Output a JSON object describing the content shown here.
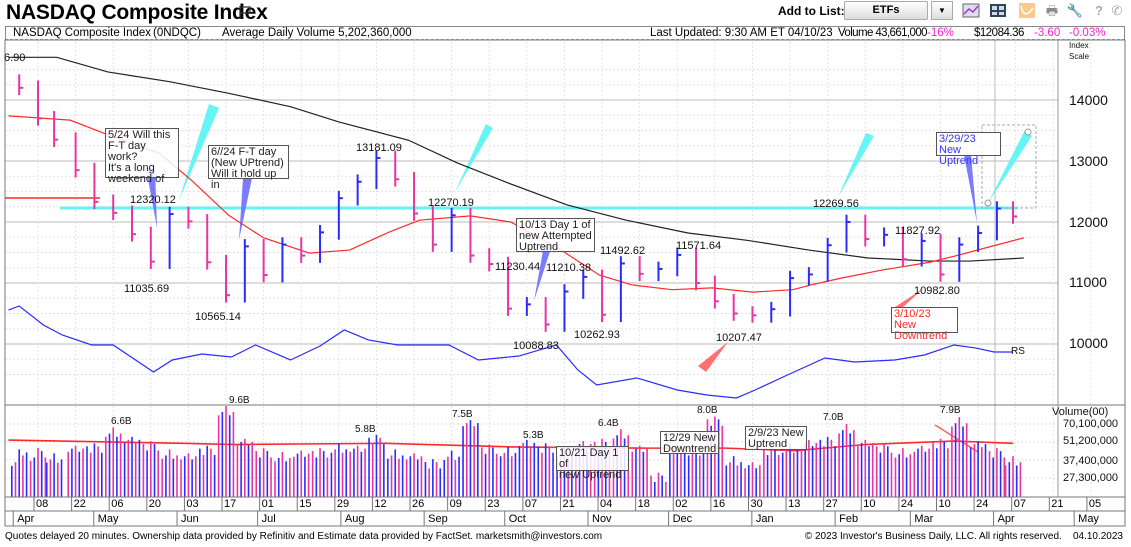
{
  "header": {
    "title": "NASDAQ Composite Index",
    "add_to_list_label": "Add to List:",
    "list_selected": "ETFs",
    "toolbar_icons": [
      "chart-line-icon",
      "layout-grid-icon",
      "overlay-chart-icon",
      "print-icon",
      "wrench-icon",
      "help-icon",
      "phone-icon"
    ]
  },
  "infobar": {
    "name": "NASDAQ Composite Index",
    "symbol": "(0NDQC)",
    "avg_volume": "Average Daily Volume 5,202,360,000",
    "last_updated": "Last Updated: 9:30 AM ET 04/10/23",
    "volume": "Volume 43,661,000",
    "volume_pct": "-16%",
    "price": "$12084.36",
    "change": "-3.60",
    "change_pct": "-0.03%"
  },
  "colors": {
    "up": "#2b2bff",
    "down": "#e8359f",
    "ma50": "#ff2a2a",
    "ma200": "#222222",
    "rs": "#2b2bff",
    "cyan": "#66f4f4",
    "accent_pink": "#ff1fd2"
  },
  "chart_data": {
    "type": "bar",
    "subtype": "ohlc-with-volume",
    "price_axis": {
      "label_top": "Index",
      "label_bottom": "Scale",
      "ticks": [
        "14000",
        "13000",
        "12000",
        "11000",
        "10000"
      ],
      "top_label": "6.90",
      "scale": "linear"
    },
    "volume_axis": {
      "label": "Volume(00)",
      "ticks": [
        "70,100,000",
        "51,200,000",
        "37,400,000",
        "27,300,000"
      ],
      "scale": "log"
    },
    "x_day_ticks": [
      "08",
      "22",
      "06",
      "20",
      "03",
      "17",
      "01",
      "15",
      "29",
      "12",
      "26",
      "09",
      "23",
      "07",
      "21",
      "04",
      "18",
      "02",
      "16",
      "30",
      "13",
      "27",
      "10",
      "24",
      "10",
      "24",
      "07",
      "21",
      "05"
    ],
    "x_month_ticks": [
      "Apr",
      "May",
      "Jun",
      "Jul",
      "Aug",
      "Sep",
      "Oct",
      "Nov",
      "Dec",
      "Jan",
      "Feb",
      "Mar",
      "Apr",
      "May"
    ],
    "weekly": [
      {
        "date": "2022-04-01",
        "close": 14200,
        "volume_b": 4.5
      },
      {
        "date": "2022-04-08",
        "close": 13700,
        "volume_b": 4.6
      },
      {
        "date": "2022-04-14",
        "close": 13350,
        "volume_b": 4.2
      },
      {
        "date": "2022-04-22",
        "close": 12850,
        "volume_b": 4.8
      },
      {
        "date": "2022-04-29",
        "close": 12330,
        "volume_b": 5.0
      },
      {
        "date": "2022-05-06",
        "close": 12150,
        "volume_b": 6.6
      },
      {
        "date": "2022-05-13",
        "close": 11800,
        "volume_b": 5.6
      },
      {
        "date": "2022-05-20",
        "close": 11350,
        "volume_b": 5.2
      },
      {
        "date": "2022-05-27",
        "close": 12130,
        "volume_b": 4.5
      },
      {
        "date": "2022-06-03",
        "close": 12010,
        "volume_b": 4.2
      },
      {
        "date": "2022-06-10",
        "close": 11340,
        "volume_b": 4.8
      },
      {
        "date": "2022-06-17",
        "close": 10800,
        "volume_b": 9.6
      },
      {
        "date": "2022-06-24",
        "close": 11600,
        "volume_b": 5.4
      },
      {
        "date": "2022-07-01",
        "close": 11130,
        "volume_b": 4.6
      },
      {
        "date": "2022-07-08",
        "close": 11630,
        "volume_b": 4.3
      },
      {
        "date": "2022-07-15",
        "close": 11450,
        "volume_b": 4.4
      },
      {
        "date": "2022-07-22",
        "close": 11830,
        "volume_b": 4.6
      },
      {
        "date": "2022-07-29",
        "close": 12390,
        "volume_b": 5.0
      },
      {
        "date": "2022-08-05",
        "close": 12660,
        "volume_b": 4.8
      },
      {
        "date": "2022-08-12",
        "close": 13050,
        "volume_b": 5.8
      },
      {
        "date": "2022-08-19",
        "close": 12700,
        "volume_b": 4.5
      },
      {
        "date": "2022-08-26",
        "close": 12140,
        "volume_b": 4.2
      },
      {
        "date": "2022-09-02",
        "close": 11630,
        "volume_b": 3.8
      },
      {
        "date": "2022-09-09",
        "close": 12110,
        "volume_b": 4.4
      },
      {
        "date": "2022-09-16",
        "close": 11450,
        "volume_b": 7.5
      },
      {
        "date": "2022-09-23",
        "close": 11310,
        "volume_b": 4.9
      },
      {
        "date": "2022-09-30",
        "close": 10580,
        "volume_b": 4.7
      },
      {
        "date": "2022-10-07",
        "close": 10650,
        "volume_b": 5.3
      },
      {
        "date": "2022-10-14",
        "close": 10320,
        "volume_b": 5.0
      },
      {
        "date": "2022-10-21",
        "close": 10860,
        "volume_b": 4.6
      },
      {
        "date": "2022-10-28",
        "close": 11100,
        "volume_b": 5.2
      },
      {
        "date": "2022-11-04",
        "close": 10480,
        "volume_b": 5.4
      },
      {
        "date": "2022-11-11",
        "close": 11320,
        "volume_b": 6.4
      },
      {
        "date": "2022-11-18",
        "close": 11150,
        "volume_b": 4.8
      },
      {
        "date": "2022-11-25",
        "close": 11230,
        "volume_b": 3.0
      },
      {
        "date": "2022-12-02",
        "close": 11460,
        "volume_b": 4.9
      },
      {
        "date": "2022-12-09",
        "close": 11000,
        "volume_b": 4.5
      },
      {
        "date": "2022-12-16",
        "close": 10700,
        "volume_b": 8.0
      },
      {
        "date": "2022-12-23",
        "close": 10500,
        "volume_b": 4.0
      },
      {
        "date": "2022-12-30",
        "close": 10470,
        "volume_b": 3.6
      },
      {
        "date": "2023-01-06",
        "close": 10570,
        "volume_b": 4.8
      },
      {
        "date": "2023-01-13",
        "close": 11080,
        "volume_b": 5.0
      },
      {
        "date": "2023-01-20",
        "close": 11140,
        "volume_b": 5.3
      },
      {
        "date": "2023-01-27",
        "close": 11620,
        "volume_b": 5.6
      },
      {
        "date": "2023-02-03",
        "close": 12000,
        "volume_b": 7.0
      },
      {
        "date": "2023-02-10",
        "close": 11720,
        "volume_b": 5.3
      },
      {
        "date": "2023-02-17",
        "close": 11790,
        "volume_b": 5.0
      },
      {
        "date": "2023-02-24",
        "close": 11390,
        "volume_b": 4.6
      },
      {
        "date": "2023-03-03",
        "close": 11690,
        "volume_b": 4.8
      },
      {
        "date": "2023-03-10",
        "close": 11140,
        "volume_b": 5.4
      },
      {
        "date": "2023-03-17",
        "close": 11630,
        "volume_b": 7.9
      },
      {
        "date": "2023-03-24",
        "close": 11820,
        "volume_b": 5.2
      },
      {
        "date": "2023-03-31",
        "close": 12220,
        "volume_b": 4.6
      },
      {
        "date": "2023-04-06",
        "close": 12090,
        "volume_b": 4.0
      }
    ],
    "ma50": [
      [
        "2022-03-28",
        13740
      ],
      [
        "2022-04-20",
        13670
      ],
      [
        "2022-05-04",
        13430
      ],
      [
        "2022-05-23",
        13130
      ],
      [
        "2022-06-04",
        12690
      ],
      [
        "2022-06-18",
        12110
      ],
      [
        "2022-07-01",
        11740
      ],
      [
        "2022-07-18",
        11490
      ],
      [
        "2022-08-02",
        11540
      ],
      [
        "2022-08-17",
        11840
      ],
      [
        "2022-08-28",
        12030
      ],
      [
        "2022-09-16",
        12100
      ],
      [
        "2022-10-01",
        12000
      ],
      [
        "2022-10-18",
        11590
      ],
      [
        "2022-11-03",
        11130
      ],
      [
        "2022-11-15",
        10970
      ],
      [
        "2022-11-30",
        10890
      ],
      [
        "2022-12-15",
        10920
      ],
      [
        "2022-12-30",
        10850
      ],
      [
        "2023-01-14",
        10890
      ],
      [
        "2023-01-21",
        10970
      ],
      [
        "2023-02-01",
        11080
      ],
      [
        "2023-02-16",
        11210
      ],
      [
        "2023-03-06",
        11340
      ],
      [
        "2023-03-17",
        11460
      ],
      [
        "2023-03-28",
        11590
      ],
      [
        "2023-04-10",
        11740
      ]
    ],
    "ma200": [
      [
        "2022-03-28",
        14700
      ],
      [
        "2022-04-15",
        14700
      ],
      [
        "2022-05-04",
        14460
      ],
      [
        "2022-05-27",
        14300
      ],
      [
        "2022-06-18",
        14110
      ],
      [
        "2022-07-11",
        13890
      ],
      [
        "2022-07-29",
        13640
      ],
      [
        "2022-08-24",
        13340
      ],
      [
        "2022-09-11",
        12970
      ],
      [
        "2022-09-30",
        12640
      ],
      [
        "2022-10-22",
        12280
      ],
      [
        "2022-11-13",
        12030
      ],
      [
        "2022-12-06",
        11820
      ],
      [
        "2022-12-28",
        11700
      ],
      [
        "2023-01-20",
        11540
      ],
      [
        "2023-02-11",
        11410
      ],
      [
        "2023-03-06",
        11360
      ],
      [
        "2023-03-21",
        11360
      ],
      [
        "2023-04-10",
        11410
      ]
    ],
    "rs_line": [
      [
        "2022-03-28",
        10557
      ],
      [
        "2022-04-01",
        10623
      ],
      [
        "2022-04-10",
        10311
      ],
      [
        "2022-04-17",
        10148
      ],
      [
        "2022-04-28",
        9984
      ],
      [
        "2022-05-06",
        9984
      ],
      [
        "2022-05-21",
        9541
      ],
      [
        "2022-05-28",
        9738
      ],
      [
        "2022-06-08",
        9836
      ],
      [
        "2022-06-19",
        9787
      ],
      [
        "2022-06-28",
        9984
      ],
      [
        "2022-07-11",
        9738
      ],
      [
        "2022-07-22",
        9967
      ],
      [
        "2022-07-31",
        10230
      ],
      [
        "2022-08-09",
        10066
      ],
      [
        "2022-08-20",
        9984
      ],
      [
        "2022-09-08",
        9984
      ],
      [
        "2022-09-19",
        9738
      ],
      [
        "2022-10-04",
        9803
      ],
      [
        "2022-10-18",
        9984
      ],
      [
        "2022-10-26",
        9574
      ],
      [
        "2022-11-02",
        9328
      ],
      [
        "2022-11-17",
        9443
      ],
      [
        "2022-12-02",
        9246
      ],
      [
        "2022-12-13",
        9164
      ],
      [
        "2022-12-24",
        9115
      ],
      [
        "2022-12-31",
        9246
      ],
      [
        "2023-01-12",
        9492
      ],
      [
        "2023-01-26",
        9771
      ],
      [
        "2023-02-06",
        9705
      ],
      [
        "2023-02-21",
        9738
      ],
      [
        "2023-03-04",
        9820
      ],
      [
        "2023-03-15",
        9984
      ],
      [
        "2023-03-23",
        9935
      ],
      [
        "2023-03-30",
        9869
      ],
      [
        "2023-04-06",
        9869
      ]
    ],
    "volume_ma_b": [
      [
        "2022-03-28",
        5.3
      ],
      [
        "2022-06-01",
        5.0
      ],
      [
        "2022-06-20",
        4.9
      ],
      [
        "2022-08-15",
        5.0
      ],
      [
        "2022-10-01",
        4.7
      ],
      [
        "2022-11-20",
        4.6
      ],
      [
        "2022-12-20",
        4.6
      ],
      [
        "2023-01-15",
        4.4
      ],
      [
        "2023-02-10",
        4.9
      ],
      [
        "2023-03-15",
        5.2
      ],
      [
        "2023-04-06",
        5.0
      ]
    ],
    "price_labels": [
      "12320.12",
      "11035.69",
      "10565.14",
      "13181.09",
      "12270.19",
      "11230.44",
      "11210.38",
      "10088.83",
      "10262.93",
      "11492.62",
      "11571.64",
      "10207.47",
      "12269.56",
      "11827.92",
      "10982.80"
    ],
    "volume_labels": [
      "6.6B",
      "9.6B",
      "5.8B",
      "7.5B",
      "5.3B",
      "6.4B",
      "8.0B",
      "7.0B",
      "7.9B"
    ],
    "rs_label": "RS",
    "resistance_level": 12230,
    "annotations": [
      "5/24 Will this\nF-T day  work?\n It's a long\nweekend of",
      "6//24 F-T day\n(New UPtrend)\nWill it hold up in",
      "10/13 Day 1 of\nnew Attempted\nUptrend",
      "3/29/23 New\nUptrend",
      "3/10/23 New\nDowntrend",
      "10/21 Day 1 of\nnew Uptrend",
      "12/29 New\nDowntrend",
      "2/9/23 New\nUptrend"
    ]
  },
  "footer": {
    "left": "Quotes delayed 20 minutes. Ownership data provided by Refinitiv and Estimate data provided by FactSet. marketsmith@investors.com",
    "right": "© 2023 Investor's Business Daily, LLC. All rights reserved.    04.10.2023"
  }
}
